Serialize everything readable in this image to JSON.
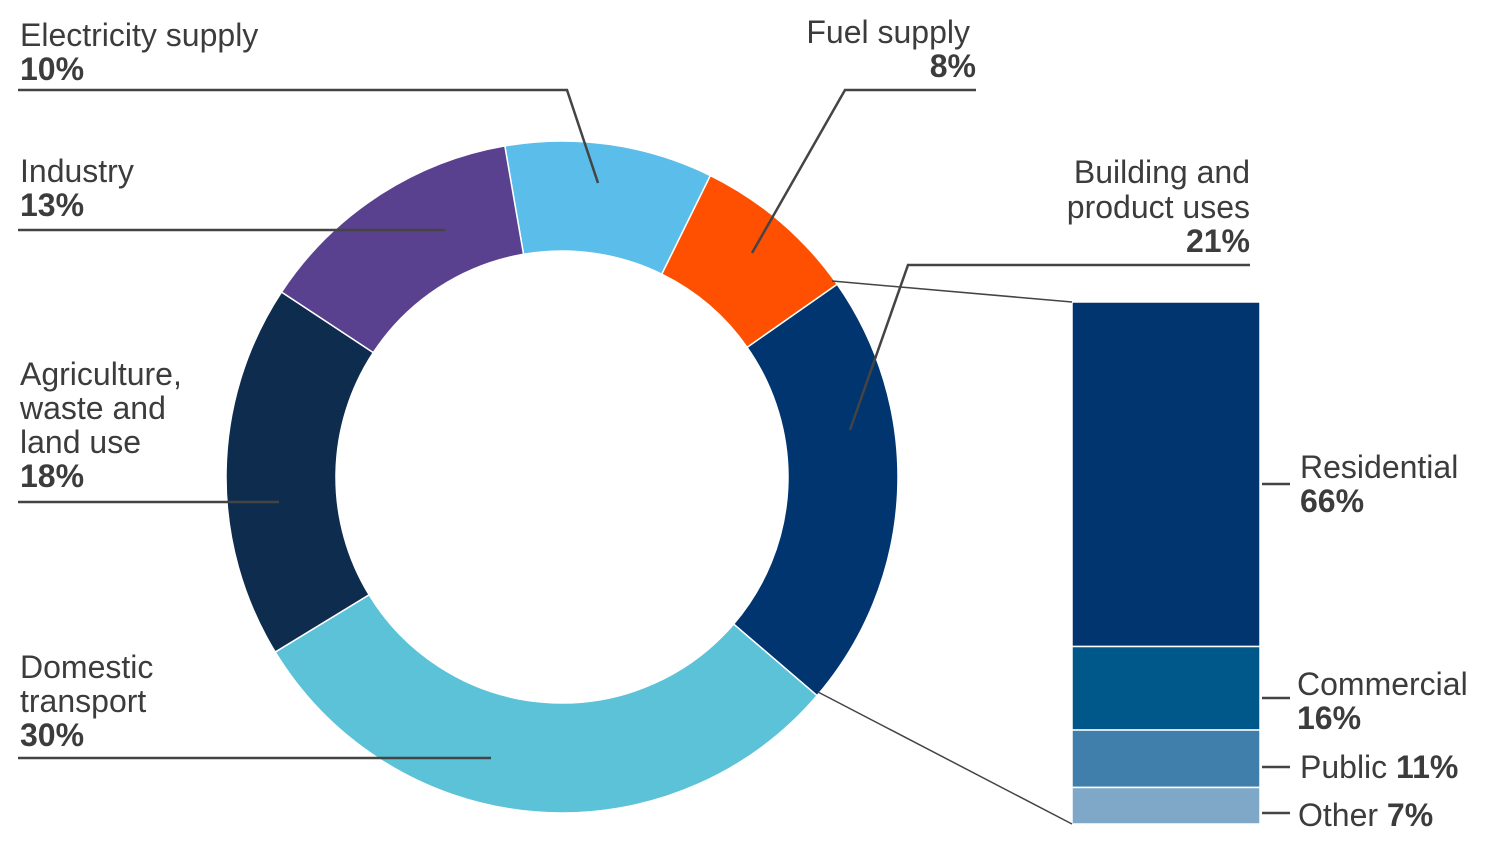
{
  "chart_data": {
    "type": "pie",
    "style": "donut",
    "segments": [
      {
        "name": "Electricity supply",
        "label_lines": [
          "Electricity supply"
        ],
        "value": 10,
        "value_label": "10%",
        "color": "#5BBDEA"
      },
      {
        "name": "Fuel supply",
        "label_lines": [
          "Fuel supply"
        ],
        "value": 8,
        "value_label": "8%",
        "color": "#FE5000"
      },
      {
        "name": "Building and product uses",
        "label_lines": [
          "Building and",
          "product uses"
        ],
        "value": 21,
        "value_label": "21%",
        "color": "#003570"
      },
      {
        "name": "Domestic transport",
        "label_lines": [
          "Domestic",
          "transport"
        ],
        "value": 30,
        "value_label": "30%",
        "color": "#5BC2D8"
      },
      {
        "name": "Agriculture, waste and land use",
        "label_lines": [
          "Agriculture,",
          "waste and",
          "land use"
        ],
        "value": 18,
        "value_label": "18%",
        "color": "#0E2C4E"
      },
      {
        "name": "Industry",
        "label_lines": [
          "Industry"
        ],
        "value": 13,
        "value_label": "13%",
        "color": "#5A418F"
      }
    ],
    "breakdown": {
      "parent": "Building and product uses",
      "type": "stacked-bar",
      "items": [
        {
          "name": "Residential",
          "value": 66,
          "value_label": "66%",
          "color": "#003570"
        },
        {
          "name": "Commercial",
          "value": 16,
          "value_label": "16%",
          "color": "#00578A"
        },
        {
          "name": "Public",
          "value": 11,
          "value_label": "11%",
          "color": "#407EAB"
        },
        {
          "name": "Other",
          "value": 7,
          "value_label": "7%",
          "color": "#7FA7C8"
        }
      ]
    }
  }
}
